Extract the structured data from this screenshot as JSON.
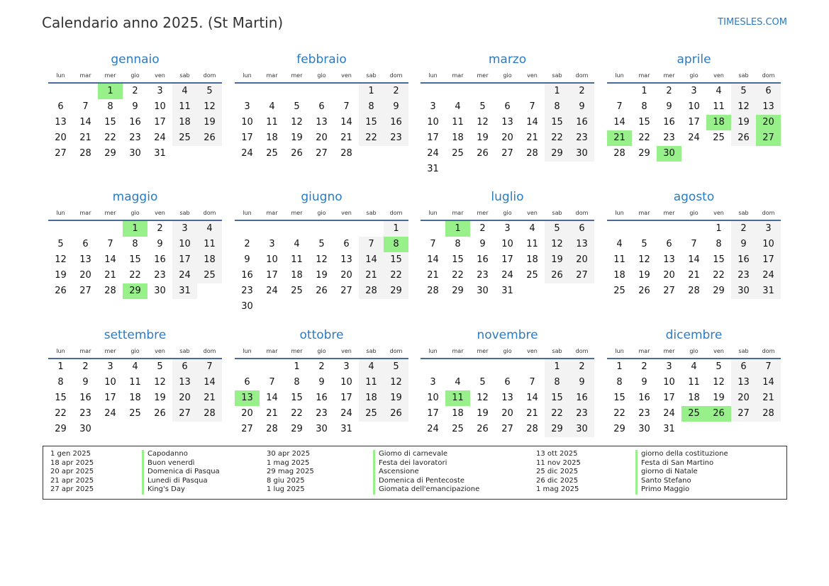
{
  "header": {
    "title": "Calendario anno 2025. (St Martin)",
    "brand": "TIMESLES.COM"
  },
  "weekdays": [
    "lun",
    "mar",
    "mer",
    "gio",
    "ven",
    "sab",
    "dom"
  ],
  "colors": {
    "accent": "#2a7bc4",
    "holiday": "#98f08a",
    "weekend": "#f3f3f3",
    "rule": "#4a6a9a"
  },
  "months": [
    {
      "name": "gennaio",
      "first_weekday": 2,
      "days": 31,
      "holidays": [
        1
      ]
    },
    {
      "name": "febbraio",
      "first_weekday": 5,
      "days": 28,
      "holidays": []
    },
    {
      "name": "marzo",
      "first_weekday": 5,
      "days": 31,
      "holidays": []
    },
    {
      "name": "aprile",
      "first_weekday": 1,
      "days": 30,
      "holidays": [
        18,
        20,
        21,
        27,
        30
      ]
    },
    {
      "name": "maggio",
      "first_weekday": 3,
      "days": 31,
      "holidays": [
        1,
        29
      ]
    },
    {
      "name": "giugno",
      "first_weekday": 6,
      "days": 30,
      "holidays": [
        8
      ]
    },
    {
      "name": "luglio",
      "first_weekday": 1,
      "days": 31,
      "holidays": [
        1
      ]
    },
    {
      "name": "agosto",
      "first_weekday": 4,
      "days": 31,
      "holidays": []
    },
    {
      "name": "settembre",
      "first_weekday": 0,
      "days": 30,
      "holidays": []
    },
    {
      "name": "ottobre",
      "first_weekday": 2,
      "days": 31,
      "holidays": [
        13
      ]
    },
    {
      "name": "novembre",
      "first_weekday": 5,
      "days": 30,
      "holidays": [
        11
      ]
    },
    {
      "name": "dicembre",
      "first_weekday": 0,
      "days": 31,
      "holidays": [
        25,
        26
      ]
    }
  ],
  "legend": [
    [
      {
        "date": "1 gen 2025",
        "name": "Capodanno"
      },
      {
        "date": "18 apr 2025",
        "name": "Buon venerdì"
      },
      {
        "date": "20 apr 2025",
        "name": "Domenica di Pasqua"
      },
      {
        "date": "21 apr 2025",
        "name": "Lunedi di Pasqua"
      },
      {
        "date": "27 apr 2025",
        "name": "King's Day"
      }
    ],
    [
      {
        "date": "30 apr 2025",
        "name": "Giomo di carnevale"
      },
      {
        "date": "1 mag 2025",
        "name": "Festa dei lavoratori"
      },
      {
        "date": "29 mag 2025",
        "name": "Ascensione"
      },
      {
        "date": "8 giu 2025",
        "name": "Domenica di Pentecoste"
      },
      {
        "date": "1 lug 2025",
        "name": "Giomata dell'emancipazione"
      }
    ],
    [
      {
        "date": "13 ott 2025",
        "name": "giorno della costituzione"
      },
      {
        "date": "11 nov 2025",
        "name": "Festa di San Martino"
      },
      {
        "date": "25 dic 2025",
        "name": "giorno di Natale"
      },
      {
        "date": "26 dic 2025",
        "name": "Santo Stefano"
      },
      {
        "date": "1 mag 2025",
        "name": "Primo Maggio"
      }
    ]
  ]
}
